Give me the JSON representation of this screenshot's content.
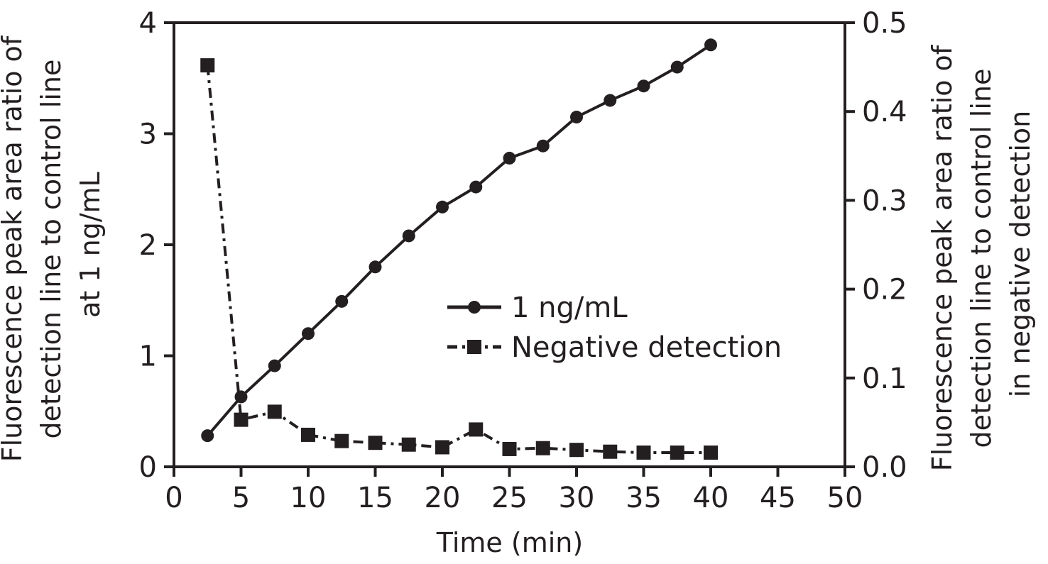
{
  "chart_data": {
    "type": "line",
    "title": "",
    "xlabel": "Time (min)",
    "ylabel_left": [
      "Fluorescence peak area ratio of",
      "detection line to control line",
      "at 1 ng/mL"
    ],
    "ylabel_right": [
      "Fluorescence peak area ratio of",
      "detection line to control line",
      "in negative detection"
    ],
    "xlim": [
      0,
      50
    ],
    "ylim_left": [
      0,
      4
    ],
    "ylim_right": [
      0,
      0.5
    ],
    "x_ticks": [
      "0",
      "5",
      "10",
      "15",
      "20",
      "25",
      "30",
      "35",
      "40",
      "45",
      "50"
    ],
    "y_left_ticks": [
      "0",
      "1",
      "2",
      "3",
      "4"
    ],
    "y_right_ticks": [
      "0.0",
      "0.1",
      "0.2",
      "0.3",
      "0.4",
      "0.5"
    ],
    "grid": false,
    "legend_position": "center-right",
    "series": [
      {
        "name": "1 ng/mL",
        "axis": "left",
        "marker": "circle",
        "line_style": "solid",
        "color": "#231f20",
        "x": [
          2.5,
          5,
          7.5,
          10,
          12.5,
          15,
          17.5,
          20,
          22.5,
          25,
          27.5,
          30,
          32.5,
          35,
          37.5,
          40
        ],
        "y": [
          0.28,
          0.63,
          0.91,
          1.2,
          1.49,
          1.8,
          2.08,
          2.34,
          2.52,
          2.78,
          2.89,
          3.15,
          3.3,
          3.43,
          3.6,
          3.8
        ]
      },
      {
        "name": "Negative detection",
        "axis": "right",
        "marker": "square",
        "line_style": "dash-dot",
        "color": "#231f20",
        "x": [
          2.5,
          5,
          7.5,
          10,
          12.5,
          15,
          17.5,
          20,
          22.5,
          25,
          27.5,
          30,
          32.5,
          35,
          37.5,
          40
        ],
        "y": [
          0.452,
          0.053,
          0.062,
          0.036,
          0.029,
          0.027,
          0.025,
          0.022,
          0.042,
          0.02,
          0.021,
          0.019,
          0.017,
          0.016,
          0.016,
          0.016
        ]
      }
    ]
  }
}
